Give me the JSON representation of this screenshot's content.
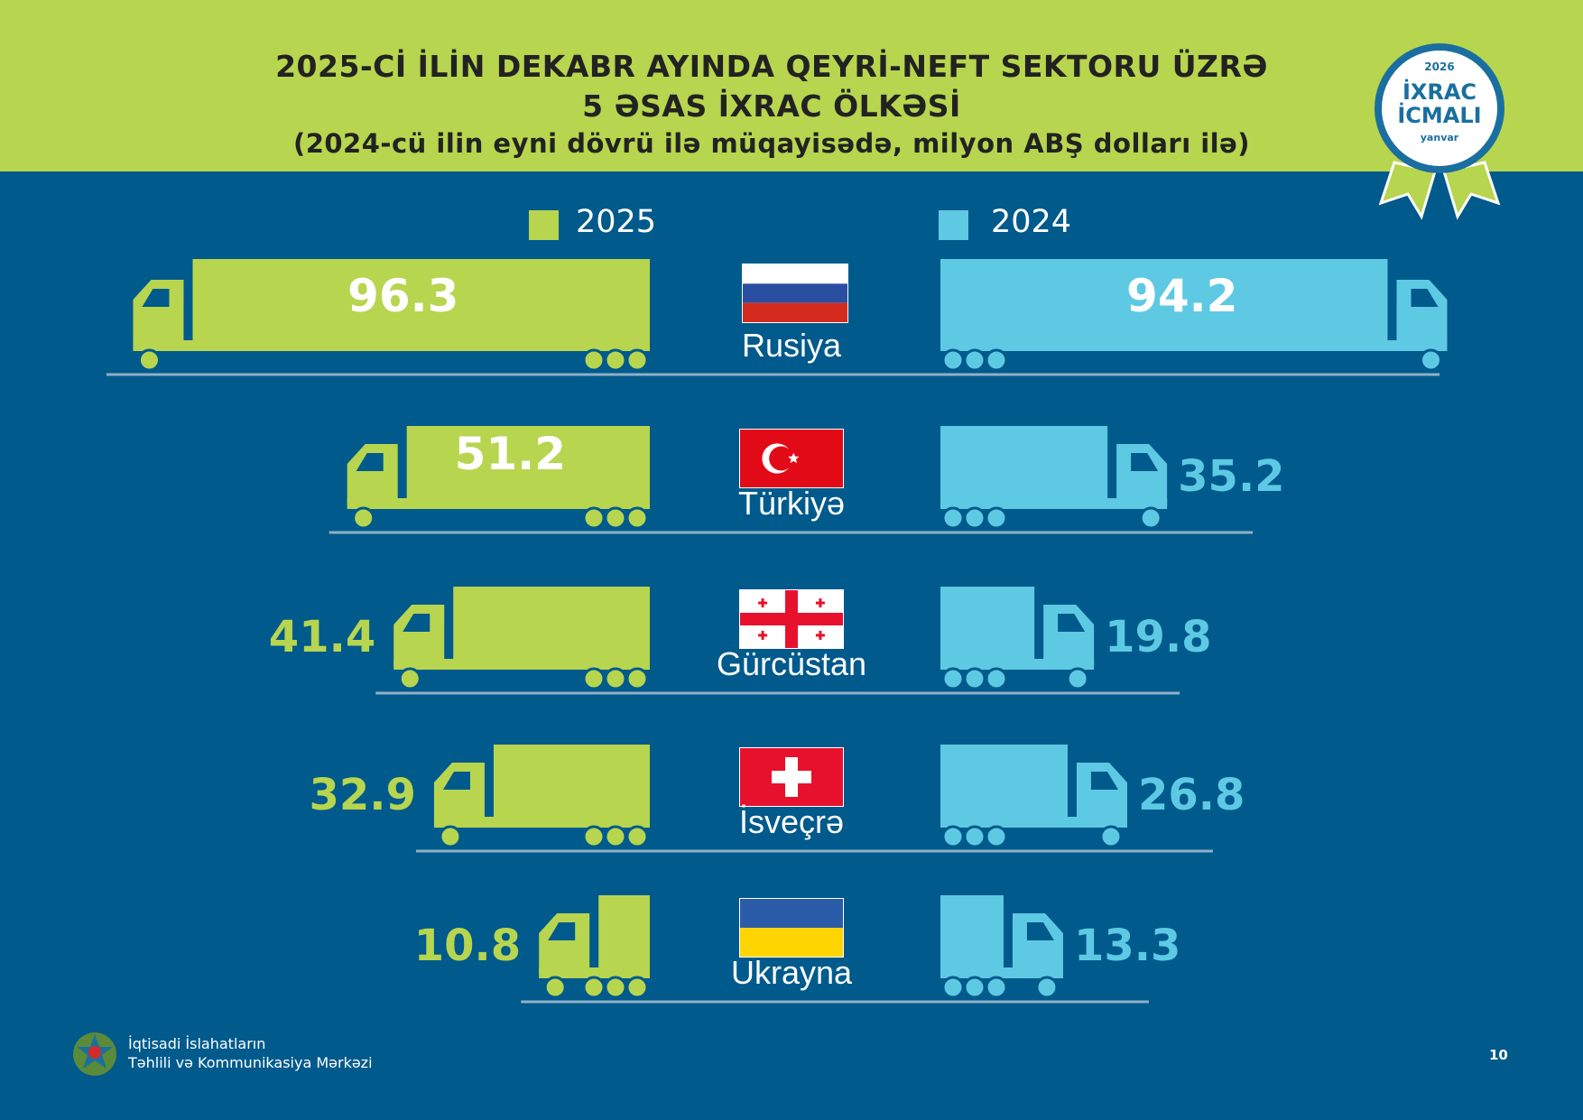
{
  "badge": {
    "year": "2026",
    "line1": "İXRAC",
    "line2": "İCMALI",
    "month": "yanvar"
  },
  "footer": {
    "org_line1": "İqtisadi İslahatların",
    "org_line2": "Təhlili və Kommunikasiya Mərkəzi",
    "page": "10"
  },
  "colors": {
    "series_2025": "#b7d54e",
    "series_2024": "#5ec9e3",
    "background": "#005a8c",
    "header": "#b7d54e"
  },
  "chart_data": {
    "type": "bar",
    "title_line1": "2025-Cİ İLİN DEKABR AYINDA QEYRİ-NEFT SEKTORU ÜZRƏ",
    "title_line2": "5 ƏSAS İXRAC ÖLKƏSİ",
    "subtitle": "(2024-cü ilin eyni dövrü ilə müqayisədə, milyon ABŞ dolları ilə)",
    "unit": "milyon ABŞ dolları",
    "categories": [
      "Rusiya",
      "Türkiyə",
      "Gürcüstan",
      "İsveçrə",
      "Ukrayna"
    ],
    "flags": [
      "russia-flag",
      "turkey-flag",
      "georgia-flag",
      "switzerland-flag",
      "ukraine-flag"
    ],
    "series": [
      {
        "name": "2025",
        "values": [
          96.3,
          51.2,
          41.4,
          32.9,
          10.8
        ],
        "labels": [
          "96.3",
          "51.2",
          "41.4",
          "32.9",
          "10.8"
        ]
      },
      {
        "name": "2024",
        "values": [
          94.2,
          35.2,
          19.8,
          26.8,
          13.3
        ],
        "labels": [
          "94.2",
          "35.2",
          "19.8",
          "26.8",
          "13.3"
        ]
      }
    ],
    "legend": "top-center",
    "grid": false
  }
}
